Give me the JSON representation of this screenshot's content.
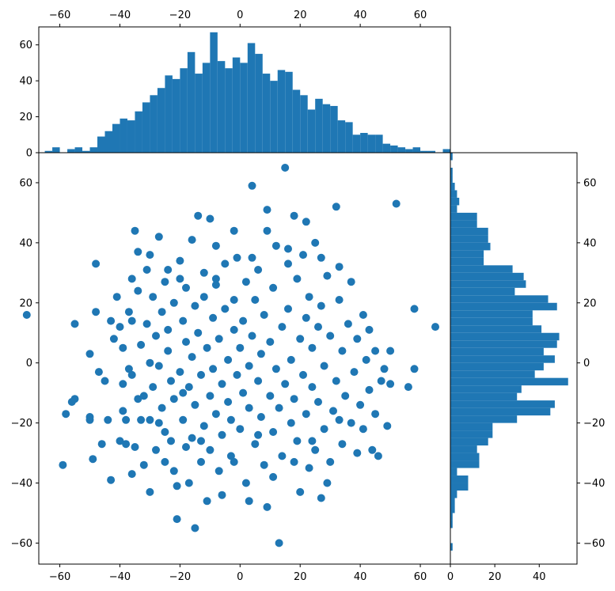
{
  "colors": {
    "series": "#1f77b4",
    "axis": "#000000",
    "background": "#ffffff"
  },
  "chart_data": [
    {
      "type": "scatter",
      "panel": "main",
      "title": "",
      "xlabel": "",
      "ylabel": "",
      "xlim": [
        -67,
        70
      ],
      "ylim": [
        -67,
        70
      ],
      "xticks": [
        -60,
        -40,
        -20,
        0,
        20,
        40,
        60
      ],
      "yticks": [
        -60,
        -40,
        -20,
        0,
        20,
        40,
        60
      ],
      "grid": false,
      "points": [
        [
          -71,
          16
        ],
        [
          -59,
          -34
        ],
        [
          -58,
          -17
        ],
        [
          -56,
          -13
        ],
        [
          -55,
          -12
        ],
        [
          -55,
          13
        ],
        [
          -50,
          -18
        ],
        [
          -50,
          -19
        ],
        [
          -50,
          3
        ],
        [
          -49,
          -32
        ],
        [
          -48,
          33
        ],
        [
          -48,
          17
        ],
        [
          -47,
          -3
        ],
        [
          -46,
          -27
        ],
        [
          -43,
          -39
        ],
        [
          -43,
          14
        ],
        [
          -42,
          8
        ],
        [
          -41,
          22
        ],
        [
          -40,
          -26
        ],
        [
          -40,
          12
        ],
        [
          -39,
          -16
        ],
        [
          -39,
          -7
        ],
        [
          -39,
          5
        ],
        [
          -38,
          -19
        ],
        [
          -38,
          -27
        ],
        [
          -37,
          -2
        ],
        [
          -37,
          17
        ],
        [
          -36,
          14
        ],
        [
          -36,
          -4
        ],
        [
          -35,
          -28
        ],
        [
          -35,
          44
        ],
        [
          -34,
          -12
        ],
        [
          -34,
          37
        ],
        [
          -34,
          24
        ],
        [
          -33,
          -19
        ],
        [
          -33,
          6
        ],
        [
          -32,
          -34
        ],
        [
          -32,
          -11
        ],
        [
          -31,
          31
        ],
        [
          -31,
          13
        ],
        [
          -30,
          -43
        ],
        [
          -30,
          -19
        ],
        [
          -30,
          0
        ],
        [
          -29,
          22
        ],
        [
          -29,
          -8
        ],
        [
          -28,
          -29
        ],
        [
          -28,
          9
        ],
        [
          -27,
          -1
        ],
        [
          -27,
          42
        ],
        [
          -26,
          17
        ],
        [
          -26,
          -15
        ],
        [
          -25,
          -33
        ],
        [
          -25,
          27
        ],
        [
          -25,
          -23
        ],
        [
          -24,
          4
        ],
        [
          -24,
          11
        ],
        [
          -23,
          -6
        ],
        [
          -23,
          -26
        ],
        [
          -22,
          20
        ],
        [
          -22,
          -12
        ],
        [
          -21,
          -52
        ],
        [
          -21,
          -41
        ],
        [
          -20,
          28
        ],
        [
          -20,
          34
        ],
        [
          -20,
          -3
        ],
        [
          -19,
          -19
        ],
        [
          -19,
          14
        ],
        [
          -18,
          25
        ],
        [
          -18,
          -28
        ],
        [
          -18,
          7
        ],
        [
          -17,
          -8
        ],
        [
          -17,
          -40
        ],
        [
          -16,
          -25
        ],
        [
          -16,
          2
        ],
        [
          -15,
          -55
        ],
        [
          -15,
          19
        ],
        [
          -15,
          -14
        ],
        [
          -14,
          49
        ],
        [
          -14,
          10
        ],
        [
          -13,
          -33
        ],
        [
          -13,
          -4
        ],
        [
          -12,
          22
        ],
        [
          -12,
          -21
        ],
        [
          -12,
          30
        ],
        [
          -11,
          -46
        ],
        [
          -11,
          5
        ],
        [
          -10,
          48
        ],
        [
          -10,
          -11
        ],
        [
          -10,
          -29
        ],
        [
          -9,
          15
        ],
        [
          -9,
          -2
        ],
        [
          -8,
          39
        ],
        [
          -8,
          -17
        ],
        [
          -8,
          26
        ],
        [
          -7,
          -36
        ],
        [
          -7,
          8
        ],
        [
          -6,
          -7
        ],
        [
          -6,
          -24
        ],
        [
          -5,
          33
        ],
        [
          -5,
          18
        ],
        [
          -4,
          -13
        ],
        [
          -4,
          1
        ],
        [
          -3,
          -31
        ],
        [
          -3,
          -19
        ],
        [
          -2,
          21
        ],
        [
          -2,
          11
        ],
        [
          -1,
          -4
        ],
        [
          -1,
          35
        ],
        [
          0,
          -22
        ],
        [
          0,
          5
        ],
        [
          1,
          -10
        ],
        [
          1,
          14
        ],
        [
          2,
          -40
        ],
        [
          2,
          27
        ],
        [
          3,
          -15
        ],
        [
          3,
          -1
        ],
        [
          4,
          59
        ],
        [
          4,
          9
        ],
        [
          5,
          -27
        ],
        [
          5,
          21
        ],
        [
          6,
          -6
        ],
        [
          6,
          31
        ],
        [
          7,
          -18
        ],
        [
          7,
          3
        ],
        [
          8,
          -34
        ],
        [
          8,
          16
        ],
        [
          9,
          -48
        ],
        [
          9,
          44
        ],
        [
          10,
          -11
        ],
        [
          10,
          7
        ],
        [
          11,
          -23
        ],
        [
          11,
          25
        ],
        [
          12,
          -2
        ],
        [
          12,
          39
        ],
        [
          13,
          -60
        ],
        [
          13,
          -15
        ],
        [
          14,
          12
        ],
        [
          14,
          -31
        ],
        [
          15,
          65
        ],
        [
          15,
          -7
        ],
        [
          16,
          18
        ],
        [
          16,
          33
        ],
        [
          17,
          -20
        ],
        [
          17,
          1
        ],
        [
          18,
          49
        ],
        [
          18,
          -12
        ],
        [
          19,
          28
        ],
        [
          19,
          -26
        ],
        [
          20,
          8
        ],
        [
          20,
          -43
        ],
        [
          21,
          -4
        ],
        [
          21,
          36
        ],
        [
          22,
          15
        ],
        [
          22,
          -17
        ],
        [
          23,
          -35
        ],
        [
          23,
          22
        ],
        [
          24,
          -8
        ],
        [
          24,
          5
        ],
        [
          25,
          -29
        ],
        [
          25,
          40
        ],
        [
          26,
          -13
        ],
        [
          26,
          12
        ],
        [
          27,
          -45
        ],
        [
          27,
          19
        ],
        [
          28,
          -22
        ],
        [
          28,
          -1
        ],
        [
          29,
          29
        ],
        [
          30,
          -33
        ],
        [
          30,
          9
        ],
        [
          31,
          -16
        ],
        [
          32,
          52
        ],
        [
          32,
          -6
        ],
        [
          33,
          21
        ],
        [
          34,
          -27
        ],
        [
          34,
          4
        ],
        [
          35,
          -11
        ],
        [
          36,
          13
        ],
        [
          37,
          -20
        ],
        [
          37,
          27
        ],
        [
          38,
          -3
        ],
        [
          39,
          -30
        ],
        [
          39,
          8
        ],
        [
          40,
          -14
        ],
        [
          41,
          16
        ],
        [
          41,
          -22
        ],
        [
          42,
          1
        ],
        [
          43,
          -9
        ],
        [
          43,
          11
        ],
        [
          44,
          -29
        ],
        [
          45,
          -17
        ],
        [
          45,
          4
        ],
        [
          46,
          -31
        ],
        [
          47,
          -6
        ],
        [
          48,
          -2
        ],
        [
          49,
          -21
        ],
        [
          50,
          4
        ],
        [
          50,
          -7
        ],
        [
          52,
          53
        ],
        [
          56,
          -8
        ],
        [
          58,
          18
        ],
        [
          58,
          -2
        ],
        [
          65,
          12
        ],
        [
          -45,
          -6
        ],
        [
          -44,
          -19
        ],
        [
          -36,
          -37
        ],
        [
          -27,
          -20
        ],
        [
          -22,
          -36
        ],
        [
          -19,
          -10
        ],
        [
          -13,
          -26
        ],
        [
          -6,
          -44
        ],
        [
          -2,
          -33
        ],
        [
          3,
          -46
        ],
        [
          6,
          -24
        ],
        [
          11,
          -38
        ],
        [
          18,
          -33
        ],
        [
          24,
          -26
        ],
        [
          29,
          -40
        ],
        [
          33,
          -19
        ],
        [
          -36,
          28
        ],
        [
          -30,
          36
        ],
        [
          -24,
          31
        ],
        [
          -16,
          41
        ],
        [
          -8,
          28
        ],
        [
          -2,
          44
        ],
        [
          4,
          35
        ],
        [
          9,
          51
        ],
        [
          16,
          38
        ],
        [
          22,
          47
        ],
        [
          27,
          35
        ],
        [
          33,
          32
        ]
      ]
    },
    {
      "type": "bar",
      "panel": "top-histogram",
      "title": "",
      "xlabel": "",
      "ylabel": "",
      "xlim": [
        -67,
        70
      ],
      "ylim": [
        0,
        70
      ],
      "xticks": [
        -60,
        -40,
        -20,
        0,
        20,
        40,
        60
      ],
      "yticks": [
        0,
        20,
        40,
        60
      ],
      "bin_width": 2.5,
      "bin_start": -72.5,
      "values": [
        1,
        0,
        0,
        1,
        3,
        0,
        2,
        3,
        1,
        3,
        9,
        12,
        16,
        19,
        18,
        23,
        28,
        32,
        36,
        43,
        41,
        47,
        56,
        44,
        50,
        67,
        51,
        47,
        53,
        50,
        61,
        55,
        44,
        40,
        46,
        45,
        35,
        32,
        24,
        30,
        27,
        26,
        18,
        17,
        10,
        11,
        10,
        10,
        5,
        4,
        3,
        2,
        3,
        1,
        1,
        0,
        2,
        0,
        2,
        1,
        1,
        0,
        1
      ]
    },
    {
      "type": "bar",
      "orientation": "horizontal",
      "panel": "right-histogram",
      "title": "",
      "xlabel": "",
      "ylabel": "",
      "xlim": [
        0,
        57
      ],
      "ylim": [
        -67,
        70
      ],
      "xticks": [
        0,
        20,
        40
      ],
      "yticks": [
        -60,
        -40,
        -20,
        0,
        20,
        40,
        60
      ],
      "bin_width": 2.5,
      "bin_start": -62.5,
      "values": [
        1,
        0,
        0,
        1,
        1,
        2,
        2,
        3,
        8,
        8,
        3,
        13,
        13,
        12,
        17,
        19,
        19,
        30,
        45,
        47,
        30,
        32,
        53,
        38,
        42,
        47,
        42,
        48,
        49,
        41,
        37,
        37,
        48,
        44,
        29,
        34,
        33,
        28,
        15,
        15,
        18,
        17,
        17,
        12,
        12,
        3,
        4,
        3,
        2,
        1,
        1,
        0,
        1,
        0,
        0,
        0
      ]
    }
  ]
}
